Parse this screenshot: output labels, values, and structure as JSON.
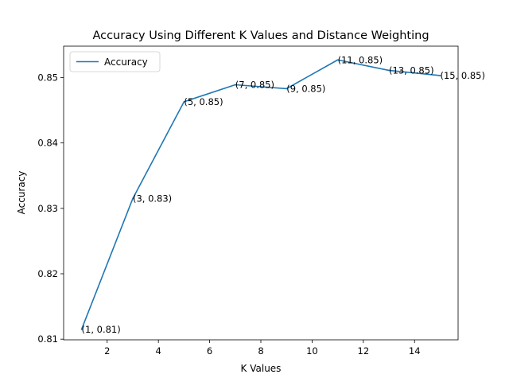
{
  "chart_data": {
    "type": "line",
    "title": "Accuracy Using Different K Values and Distance Weighting",
    "xlabel": "K Values",
    "ylabel": "Accuracy",
    "xlim": [
      0.3,
      15.7
    ],
    "ylim": [
      0.8099,
      0.8548
    ],
    "xticks": [
      2,
      4,
      6,
      8,
      10,
      12,
      14
    ],
    "xtick_labels": [
      "2",
      "4",
      "6",
      "8",
      "10",
      "12",
      "14"
    ],
    "yticks": [
      0.81,
      0.82,
      0.83,
      0.84,
      0.85
    ],
    "ytick_labels": [
      "0.81",
      "0.82",
      "0.83",
      "0.84",
      "0.85"
    ],
    "grid": false,
    "legend": {
      "position": "upper-left",
      "entries": [
        "Accuracy"
      ]
    },
    "series": [
      {
        "name": "Accuracy",
        "color": "#1f77b4",
        "x": [
          1,
          3,
          5,
          7,
          9,
          11,
          13,
          15
        ],
        "y": [
          0.8115,
          0.8315,
          0.8463,
          0.8489,
          0.8483,
          0.8527,
          0.8511,
          0.8503
        ],
        "point_labels": [
          "(1, 0.81)",
          "(3, 0.83)",
          "(5, 0.85)",
          "(7, 0.85)",
          "(9, 0.85)",
          "(11, 0.85)",
          "(13, 0.85)",
          "(15, 0.85)"
        ]
      }
    ]
  }
}
